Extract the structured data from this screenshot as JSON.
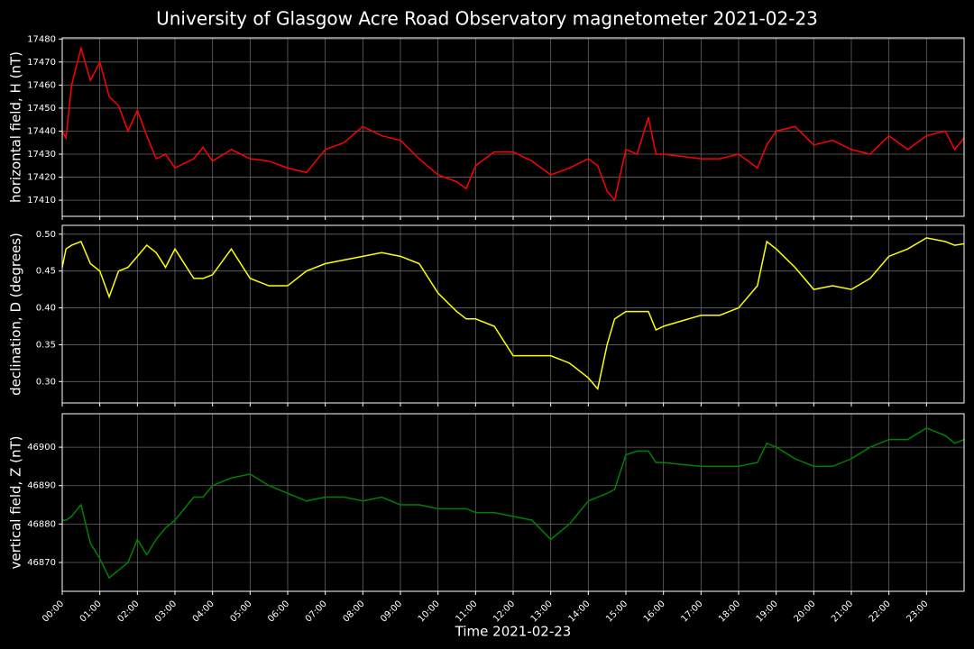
{
  "title": "University of Glasgow Acre Road Observatory magnetometer 2021-02-23",
  "chart_data": [
    {
      "type": "line",
      "ylabel": "horizontal field, H (nT)",
      "color": "#ff0000",
      "grid": true,
      "xlim": [
        0,
        24
      ],
      "ylim": [
        17403,
        17480.5
      ],
      "yticks": [
        17410,
        17420,
        17430,
        17440,
        17450,
        17460,
        17470,
        17480
      ],
      "x": [
        0,
        0.1,
        0.25,
        0.5,
        0.75,
        1,
        1.25,
        1.5,
        1.75,
        2,
        2.25,
        2.5,
        2.75,
        3,
        3.5,
        3.75,
        4,
        4.5,
        5,
        5.5,
        6,
        6.5,
        7,
        7.5,
        8,
        8.5,
        9,
        9.5,
        10,
        10.5,
        10.75,
        11,
        11.5,
        12,
        12.5,
        13,
        13.5,
        14,
        14.25,
        14.5,
        14.7,
        15,
        15.3,
        15.6,
        15.8,
        16,
        17,
        17.5,
        18,
        18.5,
        18.75,
        19,
        19.5,
        20,
        20.5,
        21,
        21.5,
        22,
        22.5,
        23,
        23.5,
        23.75,
        24
      ],
      "values": [
        17440,
        17437,
        17460,
        17476,
        17462,
        17470,
        17455,
        17451,
        17440,
        17449,
        17438,
        17428,
        17430,
        17424,
        17428,
        17433,
        17427,
        17432,
        17428,
        17427,
        17424,
        17422,
        17432,
        17435,
        17442,
        17438,
        17436,
        17428,
        17421,
        17418,
        17415,
        17425,
        17431,
        17431,
        17427,
        17421,
        17424,
        17428,
        17425,
        17414,
        17410,
        17432,
        17430,
        17446,
        17430,
        17430,
        17428,
        17428,
        17430,
        17424,
        17434,
        17440,
        17442,
        17434,
        17436,
        17432,
        17430,
        17438,
        17432,
        17438,
        17440,
        17432,
        17437
      ]
    },
    {
      "type": "line",
      "ylabel": "declination, D (degrees)",
      "color": "#ffff00",
      "grid": true,
      "xlim": [
        0,
        24
      ],
      "ylim": [
        0.271,
        0.512
      ],
      "yticks": [
        {
          "value": 0.3,
          "label": "0.30"
        },
        0.35,
        {
          "value": 0.4,
          "label": "0.40"
        },
        0.45,
        {
          "value": 0.5,
          "label": "0.50"
        }
      ],
      "x": [
        0,
        0.1,
        0.25,
        0.5,
        0.75,
        1,
        1.25,
        1.5,
        1.75,
        2,
        2.25,
        2.5,
        2.75,
        3,
        3.5,
        3.75,
        4,
        4.5,
        5,
        5.5,
        6,
        6.5,
        7,
        7.5,
        8,
        8.5,
        9,
        9.5,
        10,
        10.5,
        10.75,
        11,
        11.5,
        12,
        12.5,
        13,
        13.5,
        14,
        14.25,
        14.5,
        14.7,
        15,
        15.3,
        15.6,
        15.8,
        16,
        17,
        17.5,
        18,
        18.5,
        18.75,
        19,
        19.5,
        20,
        20.5,
        21,
        21.5,
        22,
        22.5,
        23,
        23.5,
        23.75,
        24
      ],
      "values": [
        0.455,
        0.48,
        0.485,
        0.49,
        0.46,
        0.45,
        0.415,
        0.45,
        0.455,
        0.47,
        0.485,
        0.475,
        0.455,
        0.48,
        0.44,
        0.44,
        0.445,
        0.48,
        0.44,
        0.43,
        0.43,
        0.45,
        0.46,
        0.465,
        0.47,
        0.475,
        0.47,
        0.46,
        0.42,
        0.395,
        0.385,
        0.385,
        0.375,
        0.335,
        0.335,
        0.335,
        0.325,
        0.305,
        0.29,
        0.35,
        0.385,
        0.395,
        0.395,
        0.395,
        0.37,
        0.375,
        0.39,
        0.39,
        0.4,
        0.43,
        0.49,
        0.48,
        0.455,
        0.425,
        0.43,
        0.425,
        0.44,
        0.47,
        0.48,
        0.495,
        0.49,
        0.485,
        0.487
      ]
    },
    {
      "type": "line",
      "ylabel": "vertical field, Z (nT)",
      "color": "#008000",
      "grid": true,
      "xlabel": "Time 2021-02-23",
      "xlim": [
        0,
        24
      ],
      "ylim": [
        46862.5,
        46908.7
      ],
      "yticks": [
        46870,
        46880,
        46890,
        46900
      ],
      "xticks": [
        {
          "value": 0,
          "label": "00:00"
        },
        {
          "value": 1,
          "label": "01:00"
        },
        {
          "value": 2,
          "label": "02:00"
        },
        {
          "value": 3,
          "label": "03:00"
        },
        {
          "value": 4,
          "label": "04:00"
        },
        {
          "value": 5,
          "label": "05:00"
        },
        {
          "value": 6,
          "label": "06:00"
        },
        {
          "value": 7,
          "label": "07:00"
        },
        {
          "value": 8,
          "label": "08:00"
        },
        {
          "value": 9,
          "label": "09:00"
        },
        {
          "value": 10,
          "label": "10:00"
        },
        {
          "value": 11,
          "label": "11:00"
        },
        {
          "value": 12,
          "label": "12:00"
        },
        {
          "value": 13,
          "label": "13:00"
        },
        {
          "value": 14,
          "label": "14:00"
        },
        {
          "value": 15,
          "label": "15:00"
        },
        {
          "value": 16,
          "label": "16:00"
        },
        {
          "value": 17,
          "label": "17:00"
        },
        {
          "value": 18,
          "label": "18:00"
        },
        {
          "value": 19,
          "label": "19:00"
        },
        {
          "value": 20,
          "label": "20:00"
        },
        {
          "value": 21,
          "label": "21:00"
        },
        {
          "value": 22,
          "label": "22:00"
        },
        {
          "value": 23,
          "label": "23:00"
        }
      ],
      "x": [
        0,
        0.1,
        0.25,
        0.5,
        0.75,
        1,
        1.25,
        1.5,
        1.75,
        2,
        2.25,
        2.5,
        2.75,
        3,
        3.5,
        3.75,
        4,
        4.5,
        5,
        5.5,
        6,
        6.5,
        7,
        7.5,
        8,
        8.5,
        9,
        9.5,
        10,
        10.5,
        10.75,
        11,
        11.5,
        12,
        12.5,
        13,
        13.5,
        14,
        14.25,
        14.5,
        14.7,
        15,
        15.3,
        15.6,
        15.8,
        16,
        17,
        17.5,
        18,
        18.5,
        18.75,
        19,
        19.5,
        20,
        20.5,
        21,
        21.5,
        22,
        22.5,
        23,
        23.5,
        23.75,
        24
      ],
      "values": [
        46881,
        46881,
        46882,
        46885,
        46875,
        46871,
        46866,
        46868,
        46870,
        46876,
        46872,
        46876,
        46879,
        46881,
        46887,
        46887,
        46890,
        46892,
        46893,
        46890,
        46888,
        46886,
        46887,
        46887,
        46886,
        46887,
        46885,
        46885,
        46884,
        46884,
        46884,
        46883,
        46883,
        46882,
        46881,
        46876,
        46880,
        46886,
        46887,
        46888,
        46889,
        46898,
        46899,
        46899,
        46896,
        46896,
        46895,
        46895,
        46895,
        46896,
        46901,
        46900,
        46897,
        46895,
        46895,
        46897,
        46900,
        46902,
        46902,
        46905,
        46903,
        46901,
        46902
      ]
    }
  ]
}
